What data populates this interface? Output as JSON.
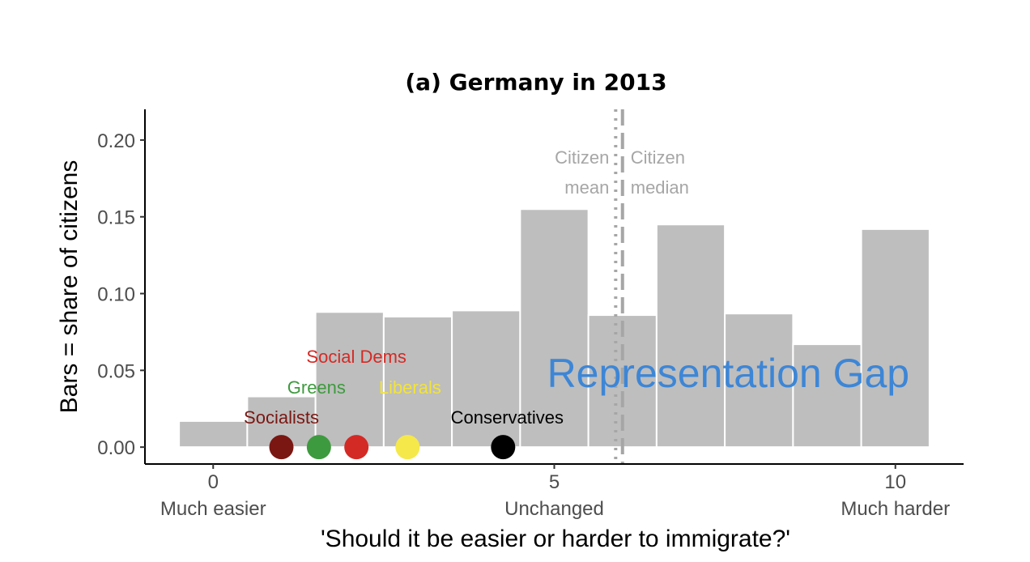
{
  "chart_data": {
    "type": "bar",
    "title": "(a) Germany in 2013",
    "xlabel": "'Should it be easier or harder to immigrate?'",
    "ylabel": "Bars = share of citizens",
    "x": [
      0,
      1,
      2,
      3,
      4,
      5,
      6,
      7,
      8,
      9,
      10
    ],
    "values": [
      0.017,
      0.033,
      0.088,
      0.085,
      0.089,
      0.155,
      0.086,
      0.145,
      0.087,
      0.067,
      0.142
    ],
    "xlim": [
      -1,
      11
    ],
    "ylim": [
      -0.011,
      0.22
    ],
    "x_ticks": [
      {
        "value": 0,
        "label": "0",
        "sublabel": "Much easier"
      },
      {
        "value": 5,
        "label": "5",
        "sublabel": "Unchanged"
      },
      {
        "value": 10,
        "label": "10",
        "sublabel": "Much harder"
      }
    ],
    "y_ticks": [
      {
        "value": 0.0,
        "label": "0.00"
      },
      {
        "value": 0.05,
        "label": "0.05"
      },
      {
        "value": 0.1,
        "label": "0.10"
      },
      {
        "value": 0.15,
        "label": "0.15"
      },
      {
        "value": 0.2,
        "label": "0.20"
      }
    ],
    "bar_color": "#bebebe",
    "grid": false,
    "reference_lines": [
      {
        "label_line1": "Citizen",
        "label_line2": "mean",
        "value": 5.9,
        "style": "dotted",
        "color": "#a6a6a6"
      },
      {
        "label_line1": "Citizen",
        "label_line2": "median",
        "value": 6.0,
        "style": "dashed",
        "color": "#a6a6a6"
      }
    ],
    "parties": [
      {
        "name": "Socialists",
        "value": 1.0,
        "color": "#7a1712"
      },
      {
        "name": "Greens",
        "value": 1.55,
        "color": "#3e9a3e"
      },
      {
        "name": "Social Dems",
        "value": 2.1,
        "color": "#d42a25"
      },
      {
        "name": "Liberals",
        "value": 2.85,
        "color": "#f5e84a"
      },
      {
        "name": "Conservatives",
        "value": 4.25,
        "color": "#000000"
      }
    ],
    "annotation": {
      "text": "Representation Gap",
      "color": "#3d86d6"
    }
  }
}
